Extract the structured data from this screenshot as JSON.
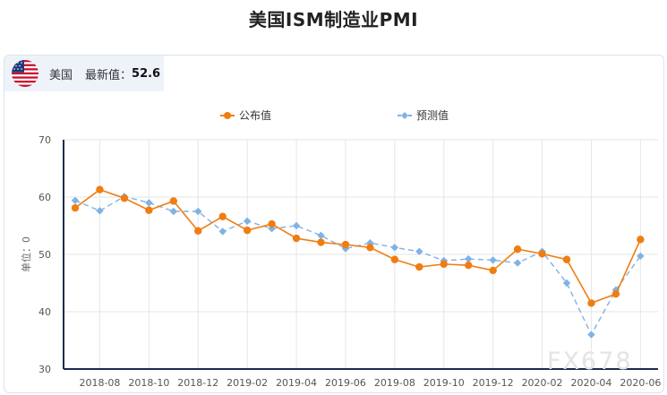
{
  "page": {
    "title": "美国ISM制造业PMI"
  },
  "summary": {
    "flag_icon": "us-flag-icon",
    "country": "美国",
    "latest_label": "最新值：",
    "latest_value": "52.6"
  },
  "watermark": "FX678",
  "colors": {
    "published": "#f07d12",
    "forecast": "#7fb2e5",
    "axis": "#1f2a4d",
    "grid": "#e6e6e6"
  },
  "chart_data": {
    "type": "line",
    "title": "",
    "ylabel": "单位：0",
    "xlabel": "",
    "ylim": [
      30,
      70
    ],
    "yticks": [
      30,
      40,
      50,
      60,
      70
    ],
    "grid": true,
    "legend": "top-center",
    "x": [
      "2018-07",
      "2018-08",
      "2018-09",
      "2018-10",
      "2018-11",
      "2018-12",
      "2019-01",
      "2019-02",
      "2019-03",
      "2019-04",
      "2019-05",
      "2019-06",
      "2019-07",
      "2019-08",
      "2019-09",
      "2019-10",
      "2019-11",
      "2019-12",
      "2020-01",
      "2020-02",
      "2020-03",
      "2020-04",
      "2020-05",
      "2020-06"
    ],
    "xtick_labels": [
      "2018-08",
      "2018-10",
      "2018-12",
      "2019-02",
      "2019-04",
      "2019-06",
      "2019-08",
      "2019-10",
      "2019-12",
      "2020-02",
      "2020-04",
      "2020-06"
    ],
    "series": [
      {
        "name": "公布值",
        "style": "solid",
        "marker": "circle",
        "values": [
          58.1,
          61.3,
          59.8,
          57.7,
          59.3,
          54.1,
          56.6,
          54.2,
          55.3,
          52.8,
          52.1,
          51.7,
          51.2,
          49.1,
          47.8,
          48.3,
          48.1,
          47.2,
          50.9,
          50.1,
          49.1,
          41.5,
          43.1,
          52.6
        ]
      },
      {
        "name": "预测值",
        "style": "dashed",
        "marker": "diamond",
        "values": [
          59.4,
          57.6,
          60.1,
          59.0,
          57.5,
          57.5,
          54.0,
          55.8,
          54.5,
          55.0,
          53.3,
          51.0,
          52.0,
          51.2,
          50.5,
          48.9,
          49.2,
          49.0,
          48.5,
          50.5,
          45.0,
          36.0,
          43.8,
          49.7
        ]
      }
    ]
  }
}
